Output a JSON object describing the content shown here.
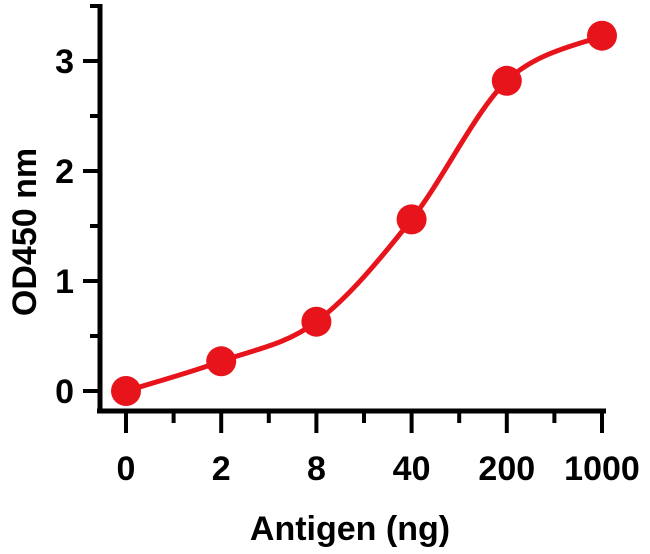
{
  "chart_data": {
    "type": "line",
    "xlabel": "Antigen (ng)",
    "ylabel": "OD450 nm",
    "categories": [
      "0",
      "2",
      "8",
      "40",
      "200",
      "1000"
    ],
    "y_ticks": [
      "0",
      "1",
      "2",
      "3"
    ],
    "ylim": [
      0,
      3.5
    ],
    "series": [
      {
        "values": [
          0.0,
          0.27,
          0.63,
          1.56,
          2.82,
          3.23
        ]
      }
    ],
    "grid": false,
    "legend": "none",
    "colors": {
      "series": "#e8141c",
      "axis": "#000000"
    }
  }
}
